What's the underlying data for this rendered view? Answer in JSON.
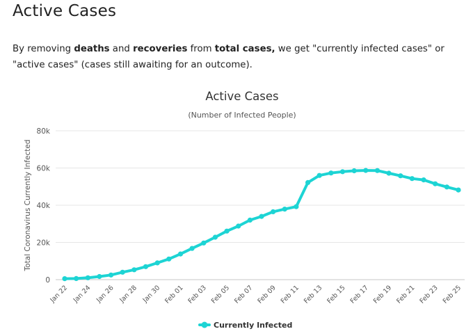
{
  "header": {
    "title": "Active Cases"
  },
  "intro": {
    "part1": "By removing ",
    "bold1": "deaths",
    "part2": " and ",
    "bold2": "recoveries",
    "part3": " from ",
    "bold3": "total cases,",
    "part4": " we get \"currently infected cases\" or \"active cases\" (cases still awaiting for an outcome)."
  },
  "chart_data": {
    "type": "line",
    "title": "Active Cases",
    "subtitle": "(Number of Infected People)",
    "xlabel": "",
    "ylabel": "Total Coronavirus Currently Infected",
    "ylim": [
      0,
      80000
    ],
    "yticks": [
      0,
      20000,
      40000,
      60000,
      80000
    ],
    "ytick_labels": [
      "0",
      "20k",
      "40k",
      "60k",
      "80k"
    ],
    "x": [
      "Jan 22",
      "Jan 23",
      "Jan 24",
      "Jan 25",
      "Jan 26",
      "Jan 27",
      "Jan 28",
      "Jan 29",
      "Jan 30",
      "Jan 31",
      "Feb 01",
      "Feb 02",
      "Feb 03",
      "Feb 04",
      "Feb 05",
      "Feb 06",
      "Feb 07",
      "Feb 08",
      "Feb 09",
      "Feb 10",
      "Feb 11",
      "Feb 12",
      "Feb 13",
      "Feb 14",
      "Feb 15",
      "Feb 16",
      "Feb 17",
      "Feb 18",
      "Feb 19",
      "Feb 20",
      "Feb 21",
      "Feb 22",
      "Feb 23",
      "Feb 24",
      "Feb 25"
    ],
    "xtick_labels": [
      "Jan 22",
      "Jan 24",
      "Jan 26",
      "Jan 28",
      "Jan 30",
      "Feb 01",
      "Feb 03",
      "Feb 05",
      "Feb 07",
      "Feb 09",
      "Feb 11",
      "Feb 13",
      "Feb 15",
      "Feb 17",
      "Feb 19",
      "Feb 21",
      "Feb 23",
      "Feb 25"
    ],
    "grid": true,
    "legend_position": "bottom-center",
    "series": [
      {
        "name": "Currently Infected",
        "color": "#1dd4d4",
        "values": [
          510,
          600,
          1000,
          1700,
          2500,
          4000,
          5300,
          7000,
          9000,
          11100,
          13800,
          16800,
          19700,
          22800,
          26100,
          28800,
          32000,
          34000,
          36500,
          37900,
          39200,
          52200,
          56000,
          57300,
          58000,
          58500,
          58700,
          58600,
          57200,
          55800,
          54300,
          53600,
          51500,
          49800,
          48200
        ]
      }
    ]
  }
}
